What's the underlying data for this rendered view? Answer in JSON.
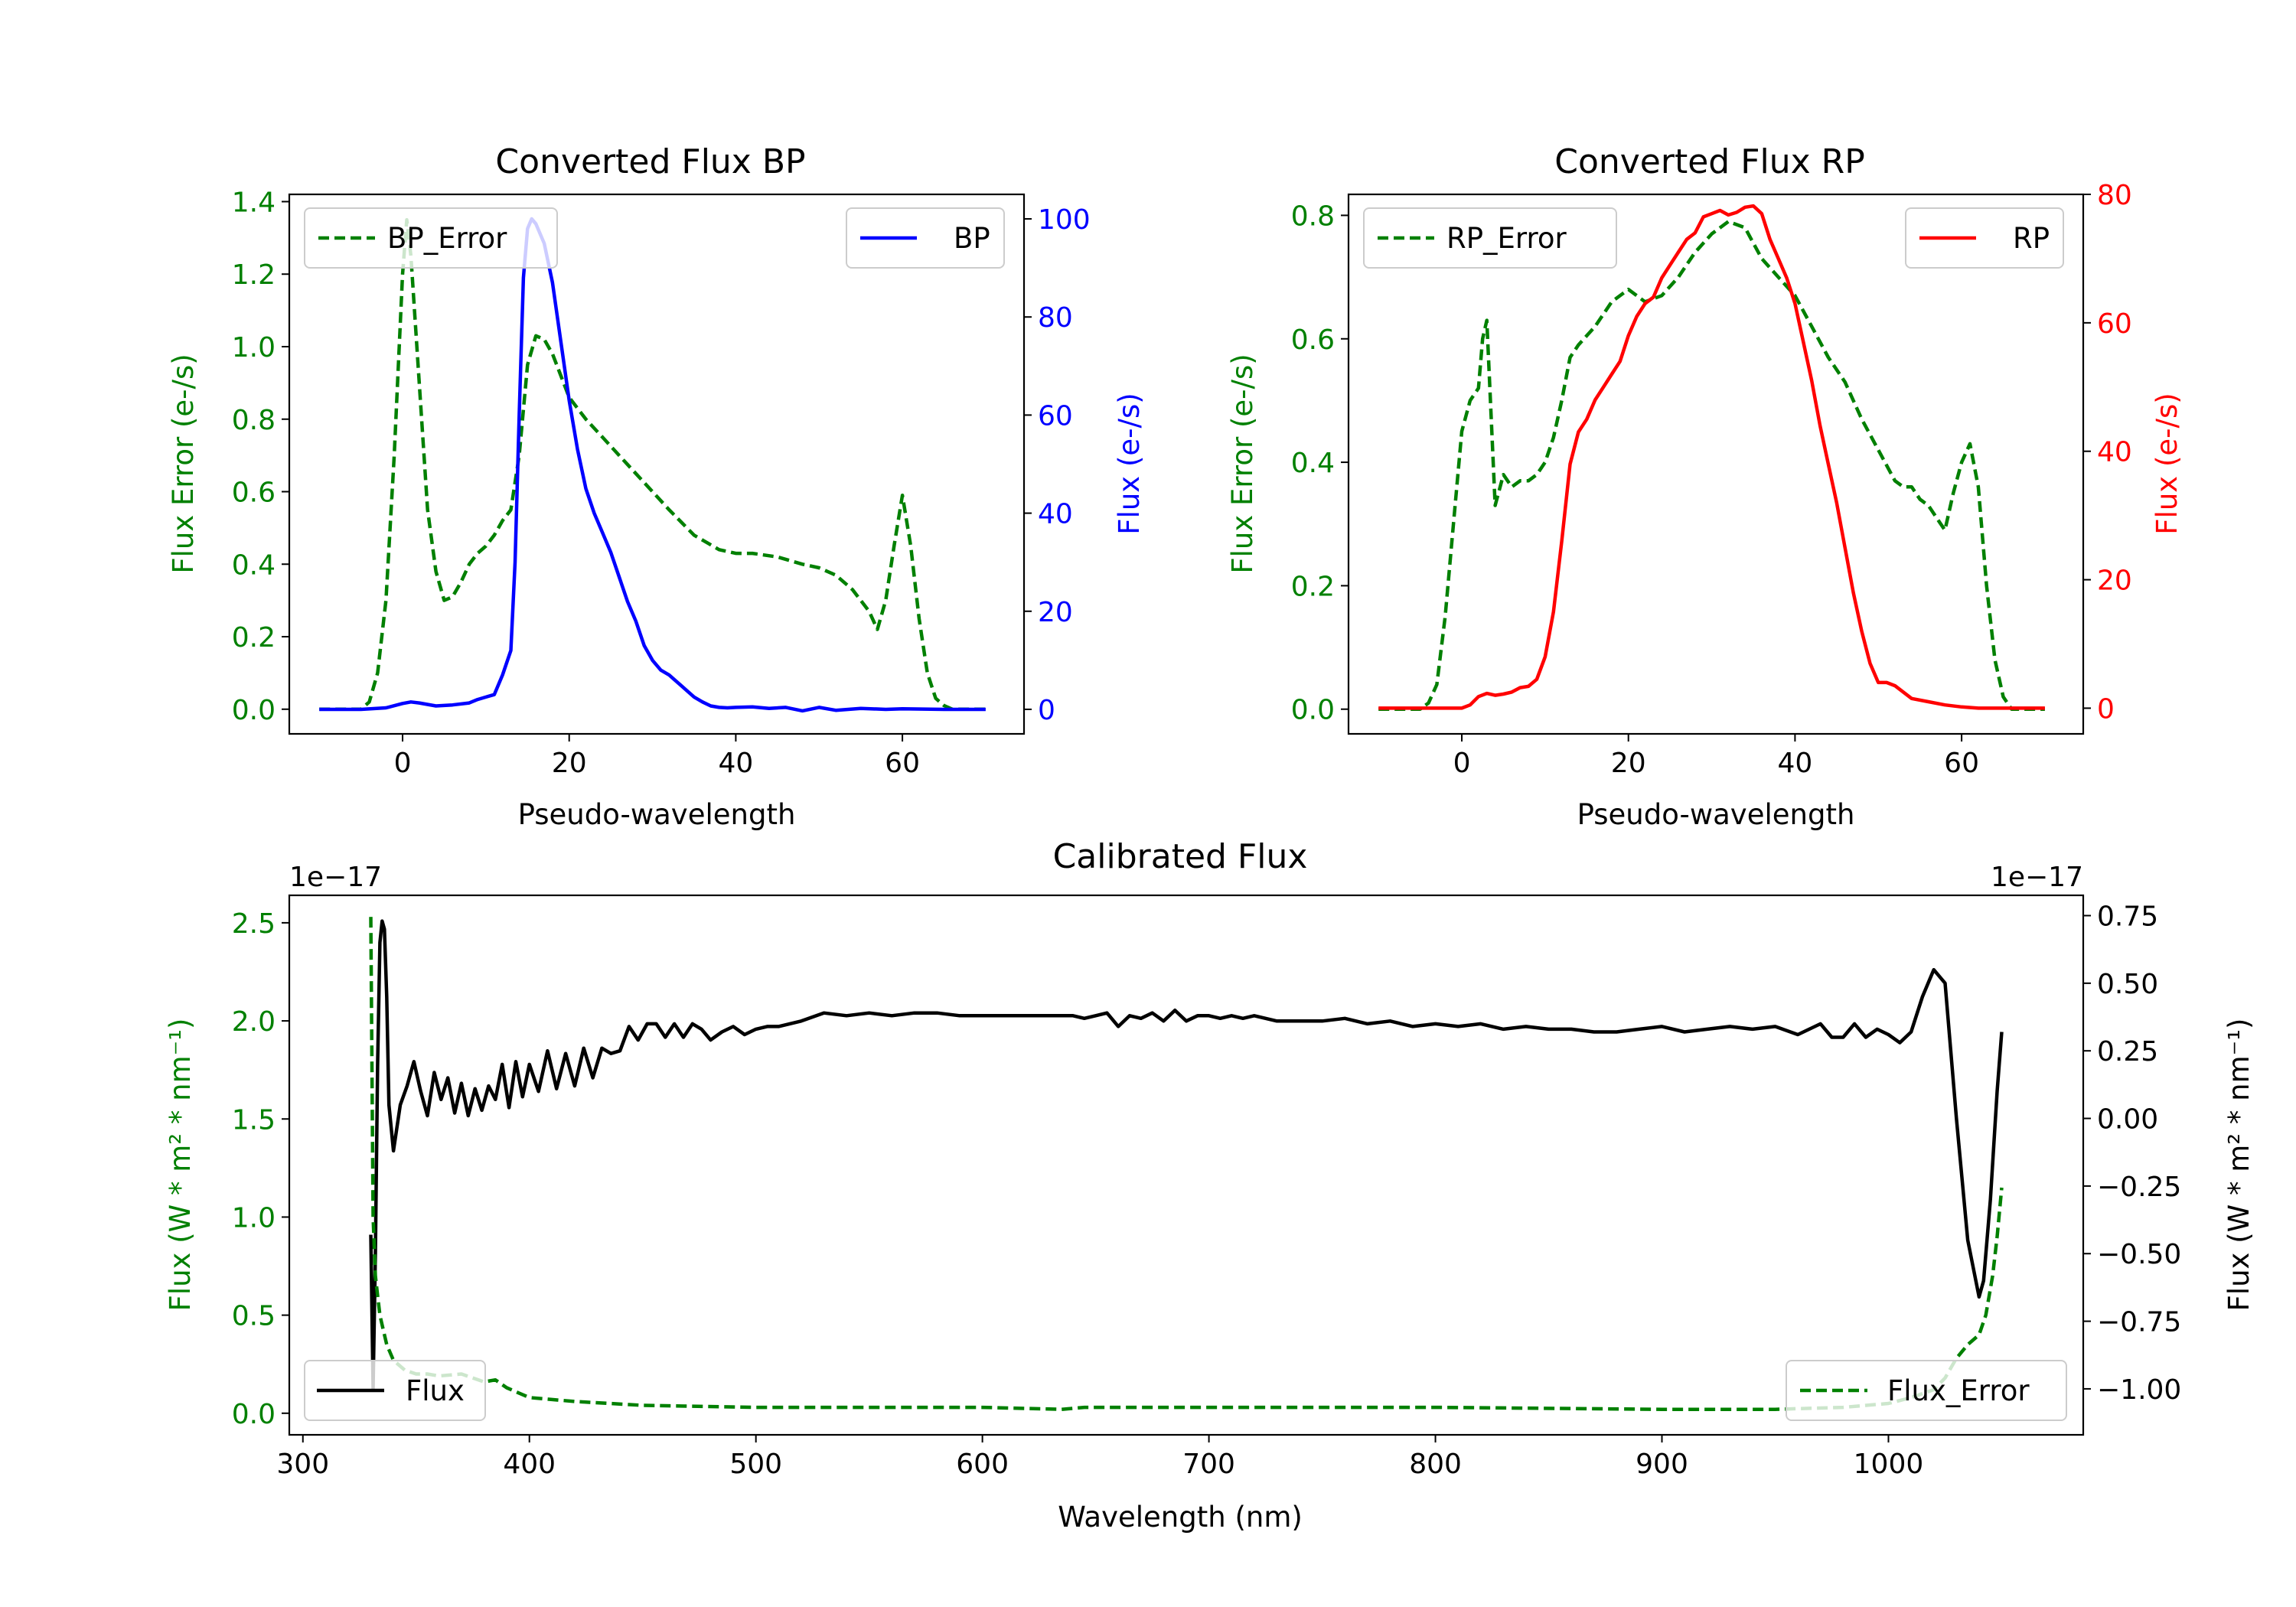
{
  "colors": {
    "error": "#008000",
    "bp": "#0000ff",
    "rp": "#ff0000",
    "flux": "#000000",
    "axis": "#000000"
  },
  "chart_data": [
    {
      "id": "bp",
      "type": "line",
      "title": "Converted Flux BP",
      "xlabel": "Pseudo-wavelength",
      "ylabel_left": "Flux Error (e-/s)",
      "ylabel_right": "Flux (e-/s)",
      "xlim": [
        -13.6,
        74.6
      ],
      "ylim_left": [
        -0.068,
        1.42
      ],
      "ylim_right": [
        -5,
        105
      ],
      "xticks": [
        0,
        20,
        40,
        60
      ],
      "yticks_left": [
        0.0,
        0.2,
        0.4,
        0.6,
        0.8,
        1.0,
        1.2,
        1.4
      ],
      "yticks_right": [
        0,
        20,
        40,
        60,
        80,
        100
      ],
      "xtick_labels": [
        "0",
        "20",
        "40",
        "60"
      ],
      "ytick_labels_left": [
        "0.0",
        "0.2",
        "0.4",
        "0.6",
        "0.8",
        "1.0",
        "1.2",
        "1.4"
      ],
      "ytick_labels_right": [
        "0",
        "20",
        "40",
        "60",
        "80",
        "100"
      ],
      "legend_left": {
        "label": "BP_Error",
        "placement": "upper left"
      },
      "legend_right": {
        "label": "BP",
        "placement": "upper right"
      },
      "series": [
        {
          "name": "BP_Error",
          "axis": "left",
          "style": "dashed",
          "color": "#008000",
          "x": [
            -10,
            -5,
            -4,
            -3,
            -2,
            -1,
            0,
            0.5,
            1,
            2,
            3,
            4,
            5,
            6,
            7,
            8,
            9,
            10,
            11,
            12,
            13,
            14,
            15,
            16,
            17,
            18,
            19,
            20,
            22,
            24,
            26,
            28,
            30,
            32,
            35,
            38,
            40,
            42,
            45,
            48,
            50,
            52,
            54,
            56,
            57,
            58,
            59,
            60,
            61,
            62,
            63,
            64,
            65,
            66,
            68,
            70
          ],
          "y": [
            0,
            0,
            0.02,
            0.1,
            0.3,
            0.7,
            1.2,
            1.35,
            1.25,
            0.9,
            0.55,
            0.38,
            0.3,
            0.31,
            0.35,
            0.4,
            0.43,
            0.45,
            0.48,
            0.52,
            0.55,
            0.7,
            0.95,
            1.03,
            1.02,
            0.98,
            0.92,
            0.86,
            0.8,
            0.75,
            0.7,
            0.65,
            0.6,
            0.55,
            0.48,
            0.44,
            0.43,
            0.43,
            0.42,
            0.4,
            0.39,
            0.37,
            0.33,
            0.27,
            0.22,
            0.3,
            0.45,
            0.59,
            0.45,
            0.25,
            0.1,
            0.03,
            0.01,
            0,
            0,
            0
          ]
        },
        {
          "name": "BP",
          "axis": "right",
          "style": "solid",
          "color": "#0000ff",
          "x": [
            -10,
            -5,
            -2,
            0,
            1,
            2,
            4,
            6,
            8,
            9,
            10,
            11,
            12,
            13,
            13.5,
            14,
            14.5,
            15,
            15.5,
            16,
            17,
            18,
            19,
            20,
            21,
            22,
            23,
            24,
            25,
            26,
            27,
            28,
            29,
            30,
            31,
            32,
            33,
            34,
            35,
            36,
            37,
            38,
            39,
            40,
            42,
            44,
            46,
            48,
            50,
            52,
            55,
            58,
            60,
            65,
            70
          ],
          "y": [
            0,
            0,
            0.3,
            1.2,
            1.5,
            1.3,
            0.7,
            0.9,
            1.3,
            2,
            2.5,
            3,
            7,
            12,
            30,
            60,
            88,
            98,
            100,
            99,
            95,
            87,
            75,
            63,
            53,
            45,
            40,
            36,
            32,
            27,
            22,
            18,
            13,
            10,
            8,
            7,
            5.5,
            4,
            2.5,
            1.5,
            0.7,
            0.4,
            0.3,
            0.4,
            0.5,
            0.2,
            0.4,
            -0.3,
            0.4,
            -0.2,
            0.2,
            0,
            0.1,
            0,
            0
          ]
        }
      ]
    },
    {
      "id": "rp",
      "type": "line",
      "title": "Converted Flux RP",
      "xlabel": "Pseudo-wavelength",
      "ylabel_left": "Flux Error (e-/s)",
      "ylabel_right": "Flux (e-/s)",
      "xlim": [
        -13.6,
        74.6
      ],
      "ylim_left": [
        -0.04,
        0.834
      ],
      "ylim_right": [
        -4,
        80
      ],
      "xticks": [
        0,
        20,
        40,
        60
      ],
      "yticks_left": [
        0.0,
        0.2,
        0.4,
        0.6,
        0.8
      ],
      "yticks_right": [
        0,
        20,
        40,
        60,
        80
      ],
      "xtick_labels": [
        "0",
        "20",
        "40",
        "60"
      ],
      "ytick_labels_left": [
        "0.0",
        "0.2",
        "0.4",
        "0.6",
        "0.8"
      ],
      "ytick_labels_right": [
        "0",
        "20",
        "40",
        "60",
        "80"
      ],
      "legend_left": {
        "label": "RP_Error",
        "placement": "upper left"
      },
      "legend_right": {
        "label": "RP",
        "placement": "upper right"
      },
      "series": [
        {
          "name": "RP_Error",
          "axis": "left",
          "style": "dashed",
          "color": "#008000",
          "x": [
            -10,
            -5,
            -4,
            -3,
            -2,
            -1,
            0,
            1,
            2,
            2.5,
            3,
            4,
            5,
            6,
            7,
            8,
            9,
            10,
            11,
            12,
            13,
            14,
            16,
            18,
            20,
            22,
            24,
            26,
            28,
            30,
            32,
            34,
            36,
            38,
            40,
            42,
            44,
            46,
            48,
            50,
            52,
            53,
            54,
            55,
            56,
            57,
            58,
            59,
            60,
            61,
            62,
            63,
            64,
            65,
            66,
            68,
            70
          ],
          "y": [
            0,
            0,
            0.01,
            0.04,
            0.15,
            0.3,
            0.45,
            0.5,
            0.52,
            0.6,
            0.63,
            0.33,
            0.38,
            0.36,
            0.37,
            0.37,
            0.38,
            0.4,
            0.44,
            0.5,
            0.57,
            0.59,
            0.62,
            0.66,
            0.68,
            0.66,
            0.67,
            0.7,
            0.74,
            0.77,
            0.79,
            0.78,
            0.73,
            0.7,
            0.67,
            0.62,
            0.57,
            0.53,
            0.47,
            0.42,
            0.37,
            0.36,
            0.36,
            0.34,
            0.33,
            0.31,
            0.29,
            0.35,
            0.4,
            0.43,
            0.36,
            0.2,
            0.08,
            0.02,
            0,
            0,
            0
          ]
        },
        {
          "name": "RP",
          "axis": "right",
          "style": "solid",
          "color": "#ff0000",
          "x": [
            -10,
            -5,
            -2,
            0,
            1,
            2,
            3,
            4,
            5,
            6,
            7,
            8,
            9,
            10,
            11,
            12,
            13,
            14,
            15,
            16,
            17,
            18,
            19,
            20,
            21,
            22,
            23,
            24,
            25,
            26,
            27,
            28,
            29,
            30,
            31,
            32,
            33,
            34,
            35,
            36,
            37,
            38,
            39,
            40,
            41,
            42,
            43,
            44,
            45,
            46,
            47,
            48,
            49,
            50,
            51,
            52,
            53,
            54,
            56,
            58,
            60,
            62,
            65,
            70
          ],
          "y": [
            0,
            0,
            0,
            0,
            0.5,
            1.8,
            2.3,
            2,
            2.2,
            2.5,
            3.2,
            3.4,
            4.5,
            8,
            15,
            26,
            38,
            43,
            45,
            48,
            50,
            52,
            54,
            58,
            61,
            63,
            64,
            67,
            69,
            71,
            73,
            74,
            76.5,
            77,
            77.5,
            76.8,
            77.2,
            78,
            78.2,
            77,
            73,
            70,
            67,
            63,
            57,
            51,
            44,
            38,
            32,
            25,
            18,
            12,
            7,
            4,
            4,
            3.5,
            2.5,
            1.5,
            1,
            0.5,
            0.2,
            0,
            0,
            0
          ]
        }
      ]
    },
    {
      "id": "calibrated",
      "type": "line",
      "title": "Calibrated Flux",
      "xlabel": "Wavelength (nm)",
      "ylabel_left": "Flux (W * m² * nm⁻¹)",
      "ylabel_right": "Flux (W * m² * nm⁻¹)",
      "offset_left": "1e−17",
      "offset_right": "1e−17",
      "xlim": [
        294,
        1086
      ],
      "ylim_left": [
        -0.11,
        2.64
      ],
      "ylim_right": [
        -1.17,
        0.825
      ],
      "xticks": [
        300,
        400,
        500,
        600,
        700,
        800,
        900,
        1000
      ],
      "yticks_left": [
        0.0,
        0.5,
        1.0,
        1.5,
        2.0,
        2.5
      ],
      "yticks_right": [
        -1.0,
        -0.75,
        -0.5,
        -0.25,
        0.0,
        0.25,
        0.5,
        0.75
      ],
      "xtick_labels": [
        "300",
        "400",
        "500",
        "600",
        "700",
        "800",
        "900",
        "1000"
      ],
      "ytick_labels_left": [
        "0.0",
        "0.5",
        "1.0",
        "1.5",
        "2.0",
        "2.5"
      ],
      "ytick_labels_right": [
        "−1.00",
        "−0.75",
        "−0.50",
        "−0.25",
        "0.00",
        "0.25",
        "0.50",
        "0.75"
      ],
      "legend_left": {
        "label": "Flux",
        "placement": "lower left"
      },
      "legend_right": {
        "label": "Flux_Error",
        "placement": "lower right"
      },
      "series": [
        {
          "name": "Flux",
          "axis": "right",
          "style": "solid",
          "color": "#000000",
          "x": [
            330,
            331,
            332,
            333,
            334,
            335,
            336,
            337,
            338,
            340,
            343,
            346,
            349,
            352,
            355,
            358,
            361,
            364,
            367,
            370,
            373,
            376,
            379,
            382,
            385,
            388,
            391,
            394,
            397,
            400,
            404,
            408,
            412,
            416,
            420,
            424,
            428,
            432,
            436,
            440,
            444,
            448,
            452,
            456,
            460,
            464,
            468,
            472,
            476,
            480,
            485,
            490,
            495,
            500,
            505,
            510,
            520,
            530,
            540,
            550,
            560,
            570,
            580,
            590,
            600,
            610,
            620,
            630,
            640,
            645,
            650,
            655,
            660,
            665,
            670,
            675,
            680,
            685,
            690,
            695,
            700,
            705,
            710,
            715,
            720,
            725,
            730,
            740,
            750,
            760,
            770,
            780,
            790,
            800,
            810,
            820,
            830,
            840,
            850,
            860,
            870,
            880,
            890,
            900,
            910,
            920,
            930,
            940,
            950,
            960,
            970,
            975,
            980,
            985,
            990,
            995,
            1000,
            1005,
            1010,
            1015,
            1020,
            1025,
            1030,
            1035,
            1040,
            1042,
            1045,
            1048,
            1050
          ],
          "y": [
            -0.43,
            -1.0,
            -0.5,
            0.2,
            0.65,
            0.73,
            0.7,
            0.45,
            0.05,
            -0.12,
            0.05,
            0.12,
            0.21,
            0.1,
            0.01,
            0.17,
            0.07,
            0.15,
            0.02,
            0.13,
            0.01,
            0.11,
            0.03,
            0.12,
            0.07,
            0.2,
            0.04,
            0.21,
            0.08,
            0.2,
            0.1,
            0.25,
            0.11,
            0.24,
            0.12,
            0.26,
            0.15,
            0.26,
            0.24,
            0.25,
            0.34,
            0.29,
            0.35,
            0.35,
            0.3,
            0.35,
            0.3,
            0.35,
            0.33,
            0.29,
            0.32,
            0.34,
            0.31,
            0.33,
            0.34,
            0.34,
            0.36,
            0.39,
            0.38,
            0.39,
            0.38,
            0.39,
            0.39,
            0.38,
            0.38,
            0.38,
            0.38,
            0.38,
            0.38,
            0.37,
            0.38,
            0.39,
            0.34,
            0.38,
            0.37,
            0.39,
            0.36,
            0.4,
            0.36,
            0.38,
            0.38,
            0.37,
            0.38,
            0.37,
            0.38,
            0.37,
            0.36,
            0.36,
            0.36,
            0.37,
            0.35,
            0.36,
            0.34,
            0.35,
            0.34,
            0.35,
            0.33,
            0.34,
            0.33,
            0.33,
            0.32,
            0.32,
            0.33,
            0.34,
            0.32,
            0.33,
            0.34,
            0.33,
            0.34,
            0.31,
            0.35,
            0.3,
            0.3,
            0.35,
            0.3,
            0.33,
            0.31,
            0.28,
            0.32,
            0.45,
            0.55,
            0.5,
            0.0,
            -0.45,
            -0.66,
            -0.6,
            -0.3,
            0.1,
            0.32
          ]
        },
        {
          "name": "Flux_Error",
          "axis": "left",
          "style": "dashed",
          "color": "#008000",
          "x": [
            330,
            331,
            332,
            333,
            334,
            335,
            337,
            340,
            345,
            350,
            355,
            360,
            370,
            380,
            385,
            390,
            400,
            410,
            420,
            450,
            500,
            550,
            600,
            635,
            645,
            700,
            800,
            900,
            950,
            980,
            1000,
            1010,
            1020,
            1025,
            1030,
            1035,
            1040,
            1043,
            1046,
            1048,
            1050
          ],
          "y": [
            2.53,
            1.0,
            0.7,
            0.6,
            0.5,
            0.45,
            0.35,
            0.27,
            0.22,
            0.2,
            0.2,
            0.19,
            0.2,
            0.16,
            0.17,
            0.13,
            0.08,
            0.07,
            0.06,
            0.04,
            0.03,
            0.03,
            0.03,
            0.02,
            0.03,
            0.03,
            0.03,
            0.02,
            0.02,
            0.03,
            0.05,
            0.08,
            0.12,
            0.18,
            0.28,
            0.35,
            0.4,
            0.5,
            0.7,
            0.9,
            1.15
          ]
        }
      ]
    }
  ]
}
